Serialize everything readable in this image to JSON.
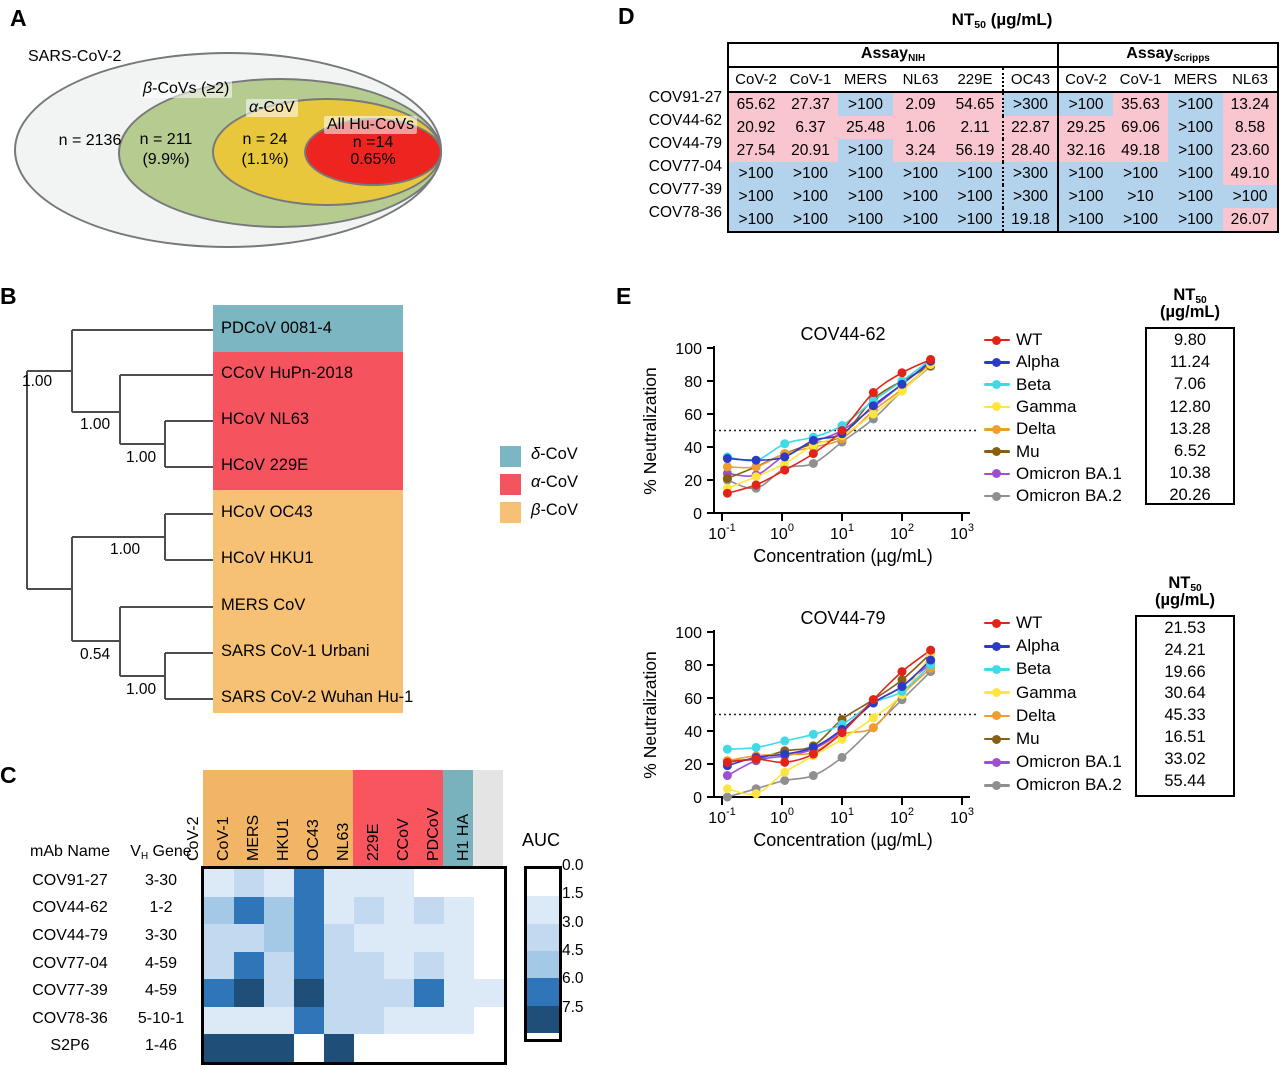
{
  "panel_labels": {
    "a": "A",
    "b": "B",
    "c": "C",
    "d": "D",
    "e": "E"
  },
  "venn": {
    "rings": [
      {
        "greek": "",
        "rest": "SARS-CoV-2",
        "n": "n = 2136",
        "pct": "",
        "fill": "#f2f3f3"
      },
      {
        "greek": "β",
        "rest": "-CoVs (≥2)",
        "n": "n = 211",
        "pct": "(9.9%)",
        "fill": "#b6cb90"
      },
      {
        "greek": "α",
        "rest": "-CoV",
        "n": "n = 24",
        "pct": "(1.1%)",
        "fill": "#e9c73c"
      },
      {
        "greek": "",
        "rest": "All Hu-CoVs",
        "n": "n =14",
        "pct": "0.65%",
        "fill": "#ee2420"
      }
    ]
  },
  "tree": {
    "supports": [
      "1.00",
      "1.00",
      "1.00",
      "1.00",
      "0.54",
      "1.00"
    ],
    "leaves": [
      "PDCoV 0081-4",
      "CCoV HuPn-2018",
      "HCoV NL63",
      "HCoV 229E",
      "HCoV OC43",
      "HCoV HKU1",
      "MERS CoV",
      "SARS CoV-1 Urbani",
      "SARS CoV-2 Wuhan Hu-1"
    ],
    "clade_sizes": {
      "delta": 1,
      "alpha": 3,
      "beta": 5
    },
    "legend": [
      {
        "greek": "δ",
        "rest": "-CoV",
        "color": "#7db6c3"
      },
      {
        "greek": "α",
        "rest": "-CoV",
        "color": "#f5545f"
      },
      {
        "greek": "β",
        "rest": "-CoV",
        "color": "#f6c075"
      }
    ]
  },
  "heatmap": {
    "legend_title": "AUC",
    "scale_ticks": [
      "0.0",
      "1.5",
      "3.0",
      "4.5",
      "6.0",
      "7.5"
    ],
    "scale_thresholds": [
      1.5,
      3,
      4.5,
      6,
      7.5
    ],
    "scale_colors": [
      "#ffffff",
      "#dce9f6",
      "#c3d9ef",
      "#a4c9e7",
      "#2e76b7",
      "#1f4e79"
    ],
    "header": {
      "name_col": "mAb Name",
      "gene_prefix": "V",
      "gene_sub": "H",
      "gene_suffix": " Gene"
    },
    "columns": [
      {
        "label": "CoV-2",
        "group": "beta"
      },
      {
        "label": "CoV-1",
        "group": "beta"
      },
      {
        "label": "MERS",
        "group": "beta"
      },
      {
        "label": "HKU1",
        "group": "beta"
      },
      {
        "label": "OC43",
        "group": "beta"
      },
      {
        "label": "NL63",
        "group": "alpha"
      },
      {
        "label": "229E",
        "group": "alpha"
      },
      {
        "label": "CCoV",
        "group": "alpha"
      },
      {
        "label": "PDCoV",
        "group": "delta"
      },
      {
        "label": "H1 HA",
        "group": "other"
      }
    ],
    "group_colors": {
      "beta": "#f2b465",
      "alpha": "#f8555e",
      "delta": "#79b1bd",
      "other": "#e4e4e4"
    },
    "rows": [
      {
        "name": "COV91-27",
        "gene": "3-30",
        "auc": [
          2.0,
          3.5,
          2.0,
          6.5,
          2.0,
          2.0,
          2.0,
          1.0,
          0.3,
          0.3
        ]
      },
      {
        "name": "COV44-62",
        "gene": "1-2",
        "auc": [
          5.0,
          6.8,
          5.0,
          6.5,
          2.0,
          4.0,
          2.2,
          4.0,
          2.0,
          1.0
        ]
      },
      {
        "name": "COV44-79",
        "gene": "3-30",
        "auc": [
          3.5,
          3.5,
          4.6,
          6.5,
          3.5,
          1.8,
          2.2,
          2.2,
          2.0,
          1.2
        ]
      },
      {
        "name": "COV77-04",
        "gene": "4-59",
        "auc": [
          4.0,
          6.8,
          4.0,
          6.5,
          3.0,
          3.0,
          2.5,
          3.5,
          2.0,
          1.0
        ]
      },
      {
        "name": "COV77-39",
        "gene": "4-59",
        "auc": [
          6.5,
          7.8,
          4.0,
          7.8,
          4.0,
          3.5,
          3.0,
          6.8,
          2.5,
          2.0
        ]
      },
      {
        "name": "COV78-36",
        "gene": "5-10-1",
        "auc": [
          1.8,
          2.5,
          1.8,
          6.5,
          4.0,
          3.5,
          2.5,
          2.2,
          2.0,
          1.0
        ]
      },
      {
        "name": "S2P6",
        "gene": "1-46",
        "auc": [
          7.8,
          7.8,
          7.8,
          0.2,
          7.8,
          0.2,
          0.2,
          0.2,
          0.2,
          0.2
        ]
      }
    ]
  },
  "nt50_table": {
    "title": {
      "prefix": "NT",
      "sub": "50",
      "suffix": " (µg/mL)"
    },
    "assays": [
      {
        "label": "Assay",
        "sub": "NIH",
        "cols": 6
      },
      {
        "label": "Assay",
        "sub": "Scripps",
        "cols": 4
      }
    ],
    "col_headers": [
      "CoV-2",
      "CoV-1",
      "MERS",
      "NL63",
      "229E",
      "OC43",
      "CoV-2",
      "CoV-1",
      "MERS",
      "NL63"
    ],
    "cell_colors": {
      "p": "#f9c5cf",
      "b": "#b3d2eb"
    },
    "rows": [
      {
        "name": "COV91-27",
        "values": [
          "65.62",
          "27.37",
          ">100",
          "2.09",
          "54.65",
          ">300",
          ">100",
          "35.63",
          ">100",
          "13.24"
        ],
        "shade": [
          "p",
          "p",
          "b",
          "p",
          "p",
          "b",
          "b",
          "p",
          "b",
          "p"
        ]
      },
      {
        "name": "COV44-62",
        "values": [
          "20.92",
          "6.37",
          "25.48",
          "1.06",
          "2.11",
          "22.87",
          "29.25",
          "69.06",
          ">100",
          "8.58"
        ],
        "shade": [
          "p",
          "p",
          "p",
          "p",
          "p",
          "p",
          "p",
          "p",
          "b",
          "p"
        ]
      },
      {
        "name": "COV44-79",
        "values": [
          "27.54",
          "20.91",
          ">100",
          "3.24",
          "56.19",
          "28.40",
          "32.16",
          "49.18",
          ">100",
          "23.60"
        ],
        "shade": [
          "p",
          "p",
          "b",
          "p",
          "p",
          "p",
          "p",
          "p",
          "b",
          "p"
        ]
      },
      {
        "name": "COV77-04",
        "values": [
          ">100",
          ">100",
          ">100",
          ">100",
          ">100",
          ">300",
          ">100",
          ">100",
          ">100",
          "49.10"
        ],
        "shade": [
          "b",
          "b",
          "b",
          "b",
          "b",
          "b",
          "b",
          "b",
          "b",
          "p"
        ]
      },
      {
        "name": "COV77-39",
        "values": [
          ">100",
          ">100",
          ">100",
          ">100",
          ">100",
          ">300",
          ">100",
          ">10",
          ">100",
          ">100"
        ],
        "shade": [
          "b",
          "b",
          "b",
          "b",
          "b",
          "b",
          "b",
          "b",
          "b",
          "b"
        ]
      },
      {
        "name": "COV78-36",
        "values": [
          ">100",
          ">100",
          ">100",
          ">100",
          ">100",
          "19.18",
          ">100",
          ">100",
          ">100",
          "26.07"
        ],
        "shade": [
          "b",
          "b",
          "b",
          "b",
          "b",
          "b",
          "b",
          "b",
          "b",
          "p"
        ]
      }
    ]
  },
  "neutralization_charts": {
    "xlabel": "Concentration (µg/mL)",
    "ylabel": "% Neutralization",
    "x_tick_base": "10",
    "x_tick_exponents": [
      "-1",
      "0",
      "1",
      "2",
      "3"
    ],
    "y_ticks": [
      0,
      20,
      40,
      60,
      80,
      100
    ],
    "dotted_line_y": 50,
    "nt50_header": {
      "prefix": "NT",
      "sub": "50",
      "unit": "(µg/mL)"
    },
    "chart_data": [
      {
        "type": "line",
        "title": "COV44-62",
        "x": [
          0.123,
          0.37,
          1.11,
          3.33,
          10,
          33.3,
          100,
          300
        ],
        "series": [
          {
            "name": "WT",
            "color": "#e2231a",
            "nt50": "9.80",
            "values": [
              12,
              17,
              26,
              36,
              50,
              73,
              85,
              93
            ]
          },
          {
            "name": "Alpha",
            "color": "#2b3bc6",
            "nt50": "11.24",
            "values": [
              33,
              32,
              34,
              44,
              48,
              65,
              78,
              92
            ]
          },
          {
            "name": "Beta",
            "color": "#3fd9e8",
            "nt50": "7.06",
            "values": [
              34,
              32,
              42,
              46,
              53,
              68,
              80,
              93
            ]
          },
          {
            "name": "Gamma",
            "color": "#ffe53d",
            "nt50": "12.80",
            "values": [
              15,
              22,
              30,
              41,
              47,
              60,
              74,
              90
            ]
          },
          {
            "name": "Delta",
            "color": "#ef9e2e",
            "nt50": "13.28",
            "values": [
              28,
              28,
              36,
              40,
              45,
              62,
              75,
              90
            ]
          },
          {
            "name": "Mu",
            "color": "#8a5d15",
            "nt50": "6.52",
            "values": [
              21,
              28,
              36,
              42,
              47,
              69,
              80,
              89
            ]
          },
          {
            "name": "Omicron BA.1",
            "color": "#9a4fd6",
            "nt50": "10.38",
            "values": [
              24,
              23,
              35,
              43,
              50,
              64,
              78,
              91
            ]
          },
          {
            "name": "Omicron BA.2",
            "color": "#8f8f8f",
            "nt50": "20.26",
            "values": [
              20,
              15,
              27,
              30,
              43,
              57,
              74,
              89
            ]
          }
        ]
      },
      {
        "type": "line",
        "title": "COV44-79",
        "x": [
          0.123,
          0.37,
          1.11,
          3.33,
          10,
          33.3,
          100,
          300
        ],
        "series": [
          {
            "name": "WT",
            "color": "#e2231a",
            "nt50": "21.53",
            "values": [
              21,
              23,
              21,
              26,
              39,
              59,
              76,
              89
            ]
          },
          {
            "name": "Alpha",
            "color": "#2b3bc6",
            "nt50": "24.21",
            "values": [
              19,
              24,
              26,
              30,
              41,
              57,
              67,
              83
            ]
          },
          {
            "name": "Beta",
            "color": "#3fd9e8",
            "nt50": "19.66",
            "values": [
              29,
              30,
              34,
              38,
              44,
              57,
              64,
              80
            ]
          },
          {
            "name": "Gamma",
            "color": "#ffe53d",
            "nt50": "30.64",
            "values": [
              5,
              2,
              15,
              25,
              35,
              48,
              62,
              86
            ]
          },
          {
            "name": "Delta",
            "color": "#ef9e2e",
            "nt50": "45.33",
            "values": [
              22,
              25,
              26,
              27,
              38,
              42,
              62,
              78
            ]
          },
          {
            "name": "Mu",
            "color": "#8a5d15",
            "nt50": "16.51",
            "values": [
              22,
              23,
              28,
              31,
              47,
              59,
              71,
              87
            ]
          },
          {
            "name": "Omicron BA.1",
            "color": "#9a4fd6",
            "nt50": "33.02",
            "values": [
              13,
              22,
              25,
              29,
              40,
              57,
              67,
              81
            ]
          },
          {
            "name": "Omicron BA.2",
            "color": "#8f8f8f",
            "nt50": "55.44",
            "values": [
              0,
              5,
              10,
              13,
              24,
              42,
              59,
              76
            ]
          }
        ]
      }
    ]
  }
}
